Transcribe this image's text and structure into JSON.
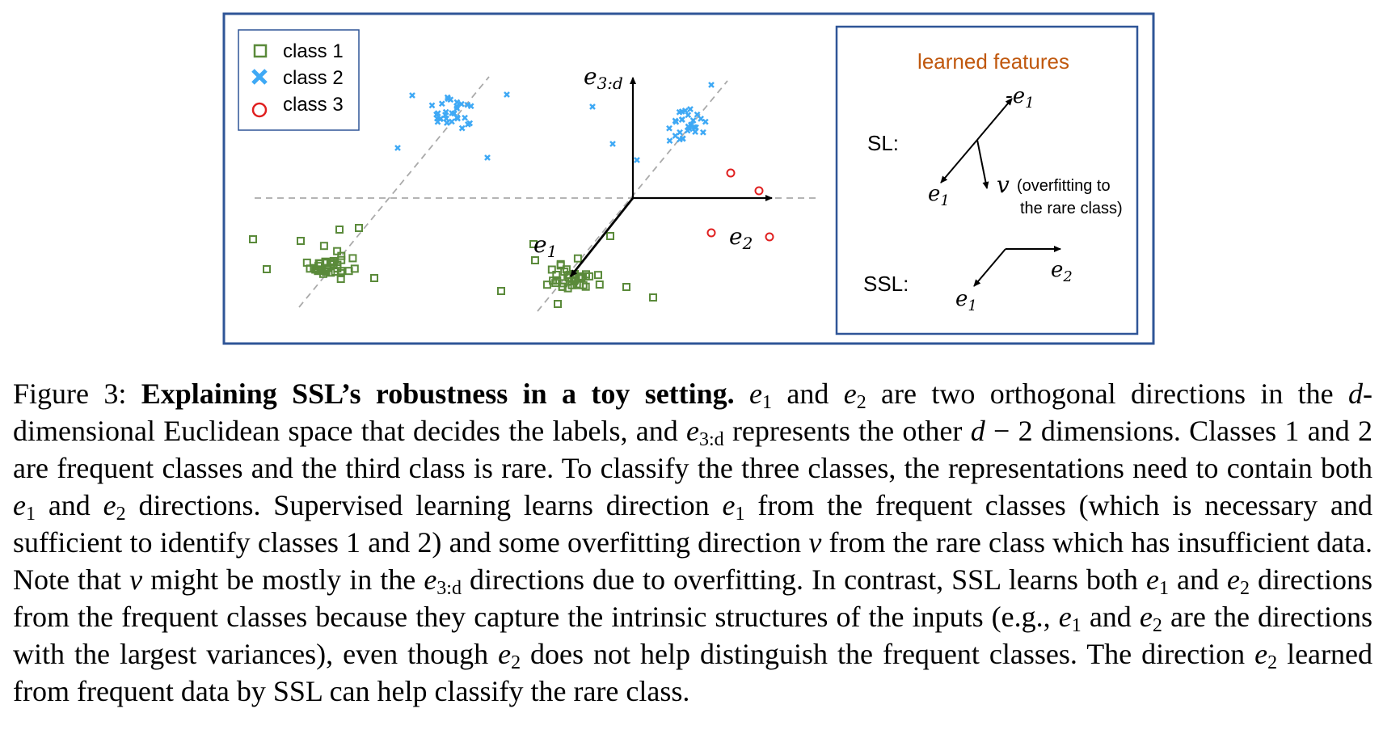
{
  "legend": {
    "items": [
      {
        "label": "class 1",
        "marker": "square",
        "color": "#5a8a3a"
      },
      {
        "label": "class 2",
        "marker": "x",
        "color": "#3fa9f5"
      },
      {
        "label": "class 3",
        "marker": "circle",
        "color": "#e02020"
      }
    ]
  },
  "scatter": {
    "axis_up_label": "e",
    "axis_up_sub": "3:d",
    "label_e1": "e",
    "label_e1_sub": "1",
    "label_e2": "e",
    "label_e2_sub": "2"
  },
  "features_panel": {
    "title": "learned features",
    "title_color": "#c0580e",
    "sl_label": "SL:",
    "ssl_label": "SSL:",
    "neg_e1": "-e",
    "neg_e1_sub": "1",
    "e1": "e",
    "e1_sub": "1",
    "e2": "e",
    "e2_sub": "2",
    "v": "v",
    "v_note_1": "(overfitting to",
    "v_note_2": "the rare class)"
  },
  "colors": {
    "frame": "#2f5597",
    "class1": "#5a8a3a",
    "class2": "#3fa9f5",
    "class3": "#e02020"
  },
  "caption": {
    "prefix": "Figure 3: ",
    "title": "Explaining SSL’s robustness in a toy setting.",
    "s1a": " ",
    "e": "e",
    "sub1": "1",
    "sub2": "2",
    "sub3d": "3:d",
    "d": "d",
    "v": "v",
    "t_and": " and ",
    "t_after_e2_1": " are two orthogonal directions in the ",
    "t_after_d_1": "-dimensional Euclidean space that decides the labels, and ",
    "t_after_e3d_1": " represents the other ",
    "t_minus2": " − 2 dimensions. Classes 1 and 2 are frequent classes and the third class is rare. To classify the three classes, the representations need to contain both ",
    "t_dir_sl": " directions. Supervised learning learns direction ",
    "t_from_freq": " from the frequent classes (which is necessary and sufficient to identify classes 1 and 2) and some overfitting direction ",
    "t_rare": " from the rare class which has insufficient data. Note that ",
    "t_might": " might be mostly in the ",
    "t_dirs_overfit": " directions due to overfitting. In contrast, SSL learns both ",
    "t_dirs_from": " directions from the frequent classes because they capture the intrinsic structures of the inputs (e.g., ",
    "t_are_the": " are the directions with the largest variances), even though ",
    "t_not_help": " does not help distinguish the frequent classes. The direction ",
    "t_end": " learned from frequent data by SSL can help classify the rare class."
  }
}
